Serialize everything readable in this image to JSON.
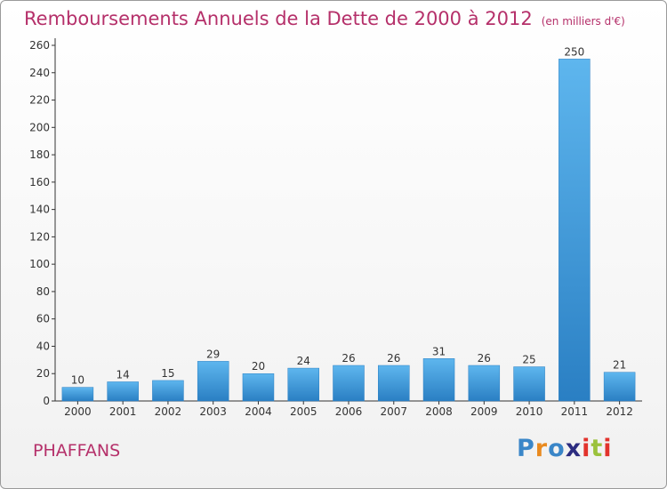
{
  "header": {
    "title": "Remboursements Annuels de la Dette de 2000 à 2012",
    "unit": "(en milliers d'€)"
  },
  "footer": {
    "commune": "PHAFFANS",
    "brand": {
      "letters": [
        "P",
        "r",
        "o",
        "x",
        "i",
        "t",
        "i"
      ],
      "colors": [
        "#3a86c8",
        "#e98a1f",
        "#3a86c8",
        "#2c2c80",
        "#e2332c",
        "#9bc23c",
        "#e2332c"
      ]
    }
  },
  "colors": {
    "bar_light": "#5eb6ee",
    "bar_dark": "#2a7fc3",
    "title": "#b5306a"
  },
  "chart_data": {
    "type": "bar",
    "categories": [
      "2000",
      "2001",
      "2002",
      "2003",
      "2004",
      "2005",
      "2006",
      "2007",
      "2008",
      "2009",
      "2010",
      "2011",
      "2012"
    ],
    "values": [
      10,
      14,
      15,
      29,
      20,
      24,
      26,
      26,
      31,
      26,
      25,
      250,
      21
    ],
    "data_labels": [
      "10",
      "14",
      "15",
      "29",
      "20",
      "24",
      "26",
      "26",
      "31",
      "26",
      "25",
      "250",
      "21"
    ],
    "y_ticks": [
      0,
      20,
      40,
      60,
      80,
      100,
      120,
      140,
      160,
      180,
      200,
      220,
      240,
      260
    ],
    "ylim": [
      0,
      260
    ],
    "grid": false,
    "legend": "none"
  }
}
